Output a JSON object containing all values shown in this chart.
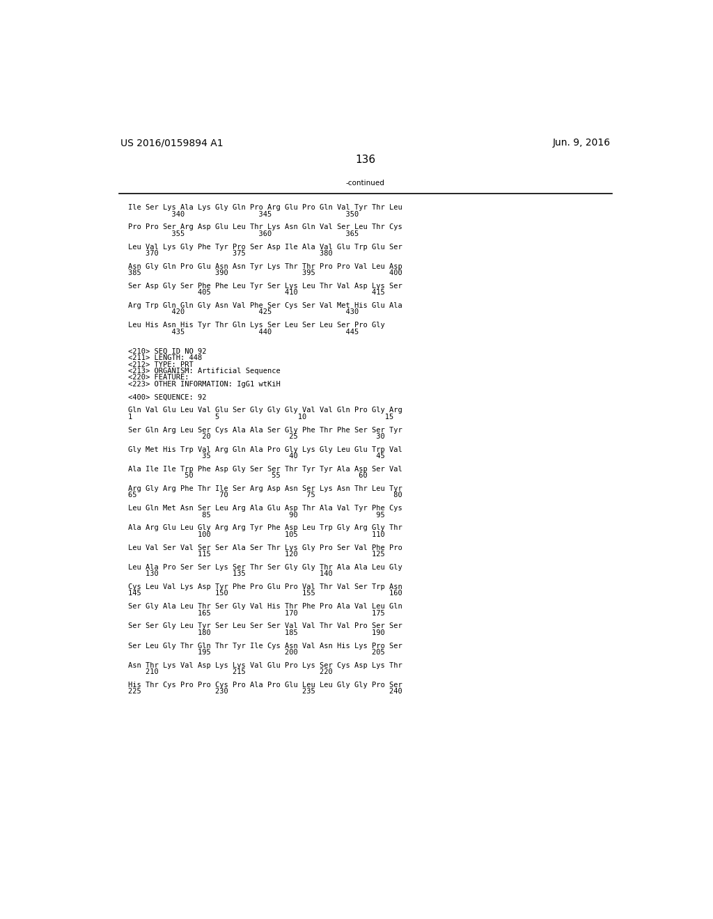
{
  "header_left": "US 2016/0159894 A1",
  "header_right": "Jun. 9, 2016",
  "page_number": "136",
  "continued_label": "-continued",
  "background_color": "#ffffff",
  "text_color": "#000000",
  "font_size": 7.5,
  "mono_font": "DejaVu Sans Mono",
  "header_font_size": 10,
  "page_num_font_size": 11,
  "content_lines": [
    "Ile Ser Lys Ala Lys Gly Gln Pro Arg Glu Pro Gln Val Tyr Thr Leu",
    "          340                 345                 350",
    "",
    "Pro Pro Ser Arg Asp Glu Leu Thr Lys Asn Gln Val Ser Leu Thr Cys",
    "          355                 360                 365",
    "",
    "Leu Val Lys Gly Phe Tyr Pro Ser Asp Ile Ala Val Glu Trp Glu Ser",
    "    370                 375                 380",
    "",
    "Asn Gly Gln Pro Glu Asn Asn Tyr Lys Thr Thr Pro Pro Val Leu Asp",
    "385                 390                 395                 400",
    "",
    "Ser Asp Gly Ser Phe Phe Leu Tyr Ser Lys Leu Thr Val Asp Lys Ser",
    "                405                 410                 415",
    "",
    "Arg Trp Gln Gln Gly Asn Val Phe Ser Cys Ser Val Met His Glu Ala",
    "          420                 425                 430",
    "",
    "Leu His Asn His Tyr Thr Gln Lys Ser Leu Ser Leu Ser Pro Gly",
    "          435                 440                 445",
    "",
    "",
    "<210> SEQ ID NO 92",
    "<211> LENGTH: 448",
    "<212> TYPE: PRT",
    "<213> ORGANISM: Artificial Sequence",
    "<220> FEATURE:",
    "<223> OTHER INFORMATION: IgG1 wtKiH",
    "",
    "<400> SEQUENCE: 92",
    "",
    "Gln Val Glu Leu Val Glu Ser Gly Gly Gly Val Val Gln Pro Gly Arg",
    "1                   5                  10                  15",
    "",
    "Ser Gln Arg Leu Ser Cys Ala Ala Ser Gly Phe Thr Phe Ser Ser Tyr",
    "                 20                  25                  30",
    "",
    "Gly Met His Trp Val Arg Gln Ala Pro Gly Lys Gly Leu Glu Trp Val",
    "                 35                  40                  45",
    "",
    "Ala Ile Ile Trp Phe Asp Gly Ser Ser Thr Tyr Tyr Ala Asp Ser Val",
    "             50                  55                  60",
    "",
    "Arg Gly Arg Phe Thr Ile Ser Arg Asp Asn Ser Lys Asn Thr Leu Tyr",
    "65                   70                  75                  80",
    "",
    "Leu Gln Met Asn Ser Leu Arg Ala Glu Asp Thr Ala Val Tyr Phe Cys",
    "                 85                  90                  95",
    "",
    "Ala Arg Glu Leu Gly Arg Arg Tyr Phe Asp Leu Trp Gly Arg Gly Thr",
    "                100                 105                 110",
    "",
    "Leu Val Ser Val Ser Ser Ala Ser Thr Lys Gly Pro Ser Val Phe Pro",
    "                115                 120                 125",
    "",
    "Leu Ala Pro Ser Ser Lys Ser Thr Ser Gly Gly Thr Ala Ala Leu Gly",
    "    130                 135                 140",
    "",
    "Cys Leu Val Lys Asp Tyr Phe Pro Glu Pro Val Thr Val Ser Trp Asn",
    "145                 150                 155                 160",
    "",
    "Ser Gly Ala Leu Thr Ser Gly Val His Thr Phe Pro Ala Val Leu Gln",
    "                165                 170                 175",
    "",
    "Ser Ser Gly Leu Tyr Ser Leu Ser Ser Val Val Thr Val Pro Ser Ser",
    "                180                 185                 190",
    "",
    "Ser Leu Gly Thr Gln Thr Tyr Ile Cys Asn Val Asn His Lys Pro Ser",
    "                195                 200                 205",
    "",
    "Asn Thr Lys Val Asp Lys Lys Val Glu Pro Lys Ser Cys Asp Lys Thr",
    "    210                 215                 220",
    "",
    "His Thr Cys Pro Pro Cys Pro Ala Pro Glu Leu Leu Gly Gly Pro Ser",
    "225                 230                 235                 240"
  ]
}
